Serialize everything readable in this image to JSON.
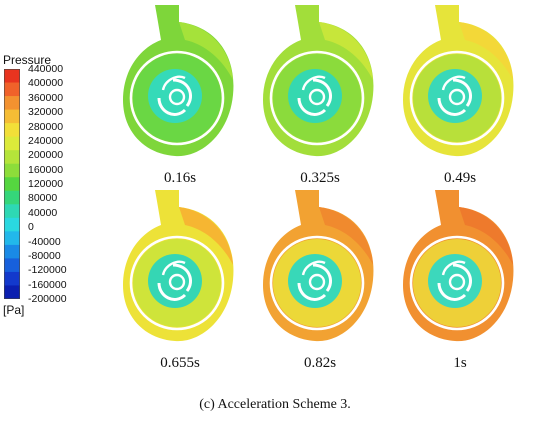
{
  "legend": {
    "title": "Pressure",
    "unit": "[Pa]",
    "ticks": [
      "440000",
      "400000",
      "360000",
      "320000",
      "280000",
      "240000",
      "200000",
      "160000",
      "120000",
      "80000",
      "40000",
      "0",
      "-40000",
      "-80000",
      "-120000",
      "-160000",
      "-200000"
    ],
    "colors": [
      "#e8341f",
      "#f0622a",
      "#f39230",
      "#f5bd35",
      "#f2df38",
      "#dcea3a",
      "#b5e43a",
      "#8ddd3a",
      "#55d640",
      "#35d67a",
      "#2ed8b4",
      "#2ad8e0",
      "#22b8ea",
      "#1a8ae6",
      "#1760dc",
      "#1339cc",
      "#0b1fb0"
    ]
  },
  "panels": [
    {
      "time": "0.16s",
      "outer": "#7ed63a",
      "tongue": "#a5e23a",
      "inner": "#6ad744",
      "center": "#35dab8"
    },
    {
      "time": "0.325s",
      "outer": "#a2de3a",
      "tongue": "#c7e63a",
      "inner": "#8bdb3c",
      "center": "#35d8b0"
    },
    {
      "time": "0.49s",
      "outer": "#e6e43a",
      "tongue": "#f3d838",
      "inner": "#b8e03a",
      "center": "#3ad8b8"
    },
    {
      "time": "0.655s",
      "outer": "#ede238",
      "tongue": "#f6b632",
      "inner": "#cfe43a",
      "center": "#35d6b4"
    },
    {
      "time": "0.82s",
      "outer": "#f2a232",
      "tongue": "#f08a2e",
      "inner": "#ecd838",
      "center": "#38d8b8"
    },
    {
      "time": "1s",
      "outer": "#f19030",
      "tongue": "#ee7a2c",
      "inner": "#eed038",
      "center": "#3cd8bc"
    }
  ],
  "caption": "(c) Acceleration Scheme 3."
}
